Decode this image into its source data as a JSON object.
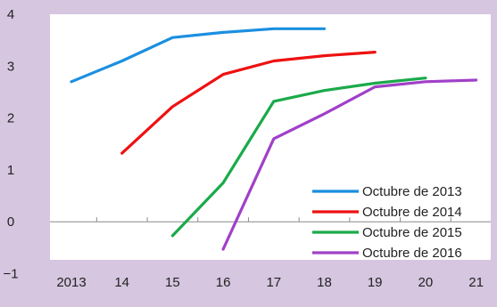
{
  "chart_data": {
    "type": "line",
    "title": "",
    "xlabel": "",
    "ylabel": "",
    "x_tick_labels": [
      "2013",
      "14",
      "15",
      "16",
      "17",
      "18",
      "19",
      "20",
      "21"
    ],
    "y_tick_labels": [
      "4",
      "3",
      "2",
      "1",
      "0",
      "−1"
    ],
    "xlim": [
      2013,
      2021
    ],
    "ylim": [
      -1,
      4
    ],
    "grid": false,
    "legend_position": "bottom-right",
    "series": [
      {
        "name": "Octubre de 2013",
        "color": "#1b8fe0",
        "x": [
          2013,
          2014,
          2015,
          2016,
          2017,
          2018
        ],
        "y": [
          2.7,
          3.1,
          3.55,
          3.65,
          3.72,
          3.72
        ]
      },
      {
        "name": "Octubre de 2014",
        "color": "#ee1111",
        "x": [
          2014,
          2015,
          2016,
          2017,
          2018,
          2019
        ],
        "y": [
          1.32,
          2.22,
          2.84,
          3.1,
          3.2,
          3.27
        ]
      },
      {
        "name": "Octubre de 2015",
        "color": "#1aaa4a",
        "x": [
          2015,
          2016,
          2017,
          2018,
          2019,
          2020
        ],
        "y": [
          -0.27,
          0.75,
          2.32,
          2.53,
          2.67,
          2.77
        ]
      },
      {
        "name": "Octubre de 2016",
        "color": "#a040c8",
        "x": [
          2016,
          2017,
          2018,
          2019,
          2020,
          2021
        ],
        "y": [
          -0.53,
          1.6,
          2.08,
          2.6,
          2.7,
          2.73
        ]
      }
    ]
  }
}
